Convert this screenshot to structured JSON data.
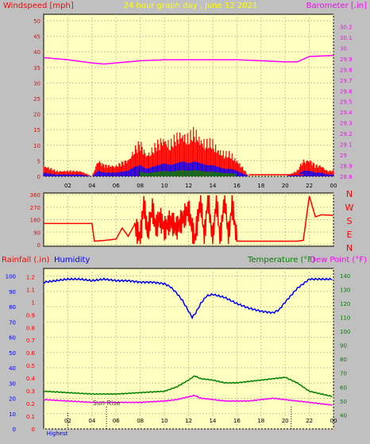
{
  "title": "24 hour graph day , June 12 2021",
  "colors": {
    "background": "#c0c0c0",
    "plot_bg": "#ffffc0",
    "grid": "#c8c8a0",
    "wind": "#ff0000",
    "wind_gust": "#ff0000",
    "wind_avg": "#0000ff",
    "wind_low": "#008000",
    "barometer": "#ff00ff",
    "direction": "#ff0000",
    "humidity": "#0000ff",
    "temperature": "#008000",
    "dew_point": "#ff00ff",
    "title": "#ffff00",
    "axis_text": "#000000"
  },
  "chart_data": [
    {
      "type": "bar",
      "title": "24 hour graph day , June 12 2021",
      "ylabel": "Windspeed [mph]",
      "ylabel_right": "Barometer [.in]",
      "xticks": [
        "02",
        "04",
        "06",
        "08",
        "10",
        "12",
        "14",
        "16",
        "18",
        "20",
        "22",
        "00"
      ],
      "ylim": [
        0,
        50
      ],
      "yticks": [
        0,
        5,
        10,
        15,
        20,
        25,
        30,
        35,
        40,
        45,
        50
      ],
      "ylim_right": [
        28.8,
        30.3
      ],
      "yticks_right": [
        "28.8",
        "28.9",
        "29",
        "29.1",
        "29.2",
        "29.3",
        "29.4",
        "29.5",
        "29.6",
        "29.7",
        "29.8",
        "29.9",
        "30",
        "30.1",
        "30.2"
      ],
      "grid": true,
      "series": [
        {
          "name": "Windspeed",
          "x": [
            0,
            1,
            2,
            3,
            4,
            4.5,
            5,
            6,
            7,
            7.5,
            8,
            8.5,
            9,
            9.5,
            10,
            10.5,
            11,
            11.5,
            12,
            12.5,
            13,
            13.5,
            14,
            14.5,
            15,
            15.5,
            16,
            17,
            18,
            19,
            20,
            21,
            21.5,
            22,
            22.5,
            23,
            23.5,
            24
          ],
          "values": [
            2,
            1,
            1,
            1,
            0,
            3,
            2,
            2,
            3,
            5,
            6,
            4,
            5,
            6,
            7,
            6,
            7,
            8,
            7,
            8,
            7,
            6,
            6,
            5,
            4,
            4,
            3,
            0,
            0,
            0,
            0,
            1,
            3,
            3,
            2,
            2,
            1,
            1
          ]
        },
        {
          "name": "Barometer",
          "x": [
            0,
            2,
            4,
            5,
            6,
            8,
            10,
            12,
            14,
            16,
            18,
            20,
            21,
            22,
            24
          ],
          "values": [
            29.91,
            29.89,
            29.86,
            29.85,
            29.86,
            29.88,
            29.89,
            29.89,
            29.89,
            29.89,
            29.88,
            29.87,
            29.87,
            29.92,
            29.93
          ]
        }
      ]
    },
    {
      "type": "line",
      "ylim": [
        0,
        360
      ],
      "yticks": [
        0,
        90,
        180,
        270,
        360
      ],
      "ylabel_right_letters": [
        "N",
        "W",
        "S",
        "E",
        "N"
      ],
      "xticks": [],
      "grid": true,
      "series": [
        {
          "name": "Wind Direction",
          "x": [
            0,
            1,
            2,
            3,
            4,
            4.2,
            5,
            6,
            6.5,
            7,
            7.5,
            8,
            8.3,
            8.6,
            9,
            9.3,
            9.6,
            10,
            10.5,
            11,
            11.5,
            12,
            12.5,
            13,
            13.3,
            13.6,
            14,
            14.3,
            14.6,
            15,
            15.3,
            15.6,
            16,
            17,
            18,
            19,
            20,
            21,
            21.5,
            22,
            22.5,
            23,
            24
          ],
          "values": [
            152,
            152,
            152,
            152,
            152,
            25,
            30,
            40,
            120,
            60,
            140,
            50,
            300,
            80,
            260,
            120,
            200,
            110,
            170,
            120,
            180,
            250,
            30,
            330,
            40,
            350,
            20,
            340,
            30,
            350,
            40,
            300,
            25,
            25,
            25,
            25,
            25,
            25,
            30,
            350,
            200,
            215,
            210
          ]
        }
      ]
    },
    {
      "type": "line",
      "ylabel": "Rainfall (.in)",
      "ylabel2": "Humidity",
      "ylabel_right": "Temperature (°F)",
      "ylabel_right2": "Dew Point (°F)",
      "xticks": [
        "02",
        "04",
        "06",
        "08",
        "10",
        "12",
        "14",
        "16",
        "18",
        "20",
        "22",
        "00"
      ],
      "yticks_humidity": [
        0,
        10,
        20,
        30,
        40,
        50,
        60,
        70,
        80,
        90,
        100
      ],
      "yticks_rain": [
        "0",
        "0.1",
        "0.2",
        "0.3",
        "0.4",
        "0.5",
        "0.6",
        "0.7",
        "0.8",
        "0.9",
        "1",
        "1.1",
        "1.2"
      ],
      "yticks_temp": [
        40,
        50,
        60,
        70,
        80,
        90,
        100,
        110,
        120,
        130,
        140
      ],
      "ylim_humidity": [
        0,
        105
      ],
      "ylim_temp": [
        30,
        145
      ],
      "annotations": [
        "Sun Rise",
        "Highest"
      ],
      "grid": true,
      "series": [
        {
          "name": "Humidity",
          "x": [
            0,
            1,
            2,
            3,
            4,
            5,
            6,
            7,
            8,
            9,
            10,
            10.5,
            11,
            11.5,
            12,
            12.3,
            12.6,
            13,
            13.5,
            14,
            15,
            16,
            17,
            18,
            19,
            19.5,
            20,
            21,
            22,
            23,
            24
          ],
          "values": [
            96,
            97,
            98,
            98,
            97,
            98,
            97,
            97,
            96,
            96,
            95,
            93,
            89,
            84,
            77,
            73,
            76,
            82,
            87,
            88,
            86,
            82,
            79,
            77,
            76,
            78,
            83,
            92,
            98,
            98,
            98
          ]
        },
        {
          "name": "Temperature",
          "x": [
            0,
            2,
            4,
            6,
            8,
            10,
            11,
            12,
            12.5,
            13,
            14,
            15,
            16,
            17,
            18,
            19,
            20,
            21,
            22,
            23,
            24
          ],
          "values": [
            57,
            56,
            55,
            55,
            56,
            57,
            60,
            65,
            68,
            66,
            65,
            63,
            63,
            64,
            65,
            66,
            67,
            63,
            57,
            55,
            53
          ]
        },
        {
          "name": "Dew Point",
          "x": [
            0,
            2,
            4,
            6,
            8,
            10,
            11,
            12,
            12.5,
            13,
            14,
            15,
            16,
            17,
            18,
            19,
            20,
            21,
            22,
            23,
            24
          ],
          "values": [
            51,
            50,
            49,
            49,
            49,
            50,
            51,
            53,
            54,
            52,
            51,
            50,
            50,
            50,
            51,
            52,
            51,
            50,
            49,
            48,
            47
          ]
        },
        {
          "name": "Rainfall",
          "x": [
            0,
            24
          ],
          "values": [
            0,
            0
          ]
        }
      ]
    }
  ]
}
